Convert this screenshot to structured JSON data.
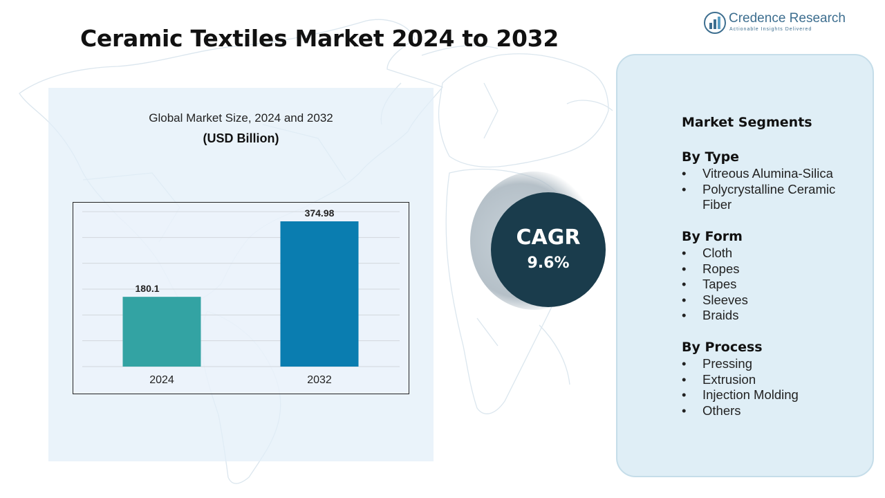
{
  "header": {
    "title": "Ceramic Textiles Market 2024 to 2032"
  },
  "logo": {
    "name": "Credence Research",
    "tagline": "Actionable Insights Delivered",
    "icon": "bar-chart-logo-icon",
    "color": "#3d6e8f"
  },
  "chart": {
    "heading": "Global Market Size, 2024 and 2032",
    "unit": "(USD Billion)"
  },
  "chart_data": {
    "type": "bar",
    "categories": [
      "2024",
      "2032"
    ],
    "values": [
      180.1,
      374.98
    ],
    "value_labels": [
      "180.1",
      "374.98"
    ],
    "colors": [
      "#33a3a3",
      "#0a7db0"
    ],
    "ylim": [
      0,
      400
    ],
    "grid": true,
    "legend": "none"
  },
  "cagr": {
    "label": "CAGR",
    "value": "9.6%",
    "color": "#1a3c4c"
  },
  "segments": {
    "title": "Market Segments",
    "bullet": "•",
    "groups": [
      {
        "title": "By Type",
        "items": [
          "Vitreous Alumina-Silica",
          "Polycrystalline Ceramic Fiber"
        ]
      },
      {
        "title": "By Form",
        "items": [
          "Cloth",
          "Ropes",
          "Tapes",
          "Sleeves",
          "Braids"
        ]
      },
      {
        "title": "By Process",
        "items": [
          "Pressing",
          "Extrusion",
          "Injection Molding",
          "Others"
        ]
      }
    ]
  }
}
